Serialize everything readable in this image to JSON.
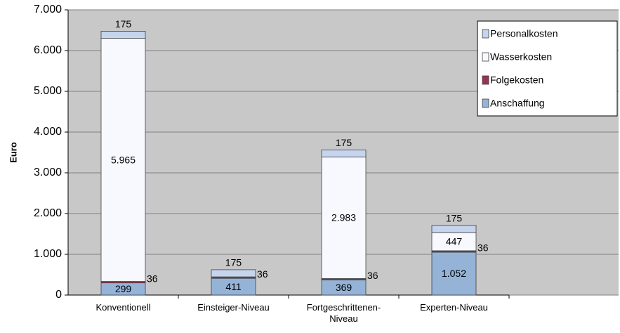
{
  "chart_data": {
    "type": "stacked_bar",
    "categories": [
      "Konventionell",
      "Einsteiger-Niveau",
      "Fortgeschrittenen-Niveau",
      "Experten-Niveau"
    ],
    "ylabel": "Euro",
    "series": [
      {
        "name": "Anschaffung",
        "color": "#95b3d7",
        "values": [
          299,
          411,
          369,
          1052
        ],
        "value_labels": [
          "299",
          "411",
          "369",
          "1.052"
        ]
      },
      {
        "name": "Folgekosten",
        "color": "#993355",
        "values": [
          36,
          36,
          36,
          36
        ]
      },
      {
        "name": "Wasserkosten",
        "color": "#f7f9ff",
        "values": [
          5965,
          0,
          2983,
          447
        ],
        "value_labels": [
          "5.965",
          null,
          "2.983",
          "447"
        ]
      },
      {
        "name": "Personalkosten",
        "color": "#c6d4ee",
        "values": [
          175,
          175,
          175,
          175
        ]
      }
    ],
    "ylim": [
      0,
      7000
    ],
    "yticks": [
      0,
      {
        "value": 1000,
        "label": "1.000"
      },
      {
        "value": 2000,
        "label": "2.000"
      },
      {
        "value": 3000,
        "label": "3.000"
      },
      {
        "value": 4000,
        "label": "4.000"
      },
      {
        "value": 5000,
        "label": "5.000"
      },
      {
        "value": 6000,
        "label": "6.000"
      },
      {
        "value": 7000,
        "label": "7.000"
      }
    ],
    "grid": true,
    "legend": "upper right"
  }
}
